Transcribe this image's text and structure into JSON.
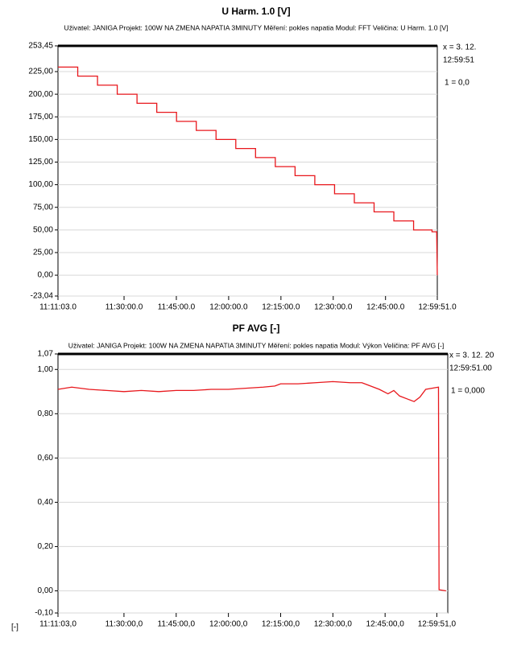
{
  "chart_data": [
    {
      "type": "line",
      "title": "U Harm. 1.0 [V]",
      "subtitle": "Uživatel: JANIGA   Projekt: 100W NA ZMENA NAPATIA 3MINUTY   Měření: pokles napatia   Modul: FFT   Veličina: U Harm. 1.0 [V]",
      "color": "#e8171c",
      "x": [
        40263,
        40603,
        40603,
        40943,
        40943,
        41283,
        41283,
        41623,
        41623,
        41963,
        41963,
        42303,
        42303,
        42643,
        42643,
        42983,
        42983,
        43323,
        43323,
        43663,
        43663,
        44003,
        44003,
        44343,
        44343,
        44683,
        44683,
        45023,
        45023,
        45363,
        45363,
        45703,
        45703,
        46043,
        46043,
        46383,
        46383,
        46700,
        46700,
        46780,
        46791
      ],
      "values": [
        230,
        230,
        220,
        220,
        210,
        210,
        200,
        200,
        190,
        190,
        180,
        180,
        170,
        170,
        160,
        160,
        150,
        150,
        140,
        140,
        130,
        130,
        120,
        120,
        110,
        110,
        100,
        100,
        90,
        90,
        80,
        80,
        70,
        70,
        60,
        60,
        50,
        50,
        48,
        48,
        0
      ],
      "xlim": [
        40263,
        46791
      ],
      "xticks": [
        {
          "value": 40263,
          "label": "11:11:03.0"
        },
        {
          "value": 41400,
          "label": "11:30:00.0"
        },
        {
          "value": 42300,
          "label": "11:45:00.0"
        },
        {
          "value": 43200,
          "label": "12:00:00.0"
        },
        {
          "value": 44100,
          "label": "12:15:00.0"
        },
        {
          "value": 45000,
          "label": "12:30:00.0"
        },
        {
          "value": 45900,
          "label": "12:45:00.0"
        },
        {
          "value": 46791,
          "label": "12:59:51.0"
        }
      ],
      "ylim": [
        -23.04,
        253.45
      ],
      "yticks": [
        {
          "value": 253.45,
          "label": "253,45"
        },
        {
          "value": 225,
          "label": "225,00"
        },
        {
          "value": 200,
          "label": "200,00"
        },
        {
          "value": 175,
          "label": "175,00"
        },
        {
          "value": 150,
          "label": "150,00"
        },
        {
          "value": 125,
          "label": "125,00"
        },
        {
          "value": 100,
          "label": "100,00"
        },
        {
          "value": 75,
          "label": "75,00"
        },
        {
          "value": 50,
          "label": "50,00"
        },
        {
          "value": 25,
          "label": "25,00"
        },
        {
          "value": 0,
          "label": "0,00"
        },
        {
          "value": -23.04,
          "label": "-23,04"
        }
      ],
      "grid": true,
      "cursor_labels": [
        "x = 3. 12.",
        "12:59:51"
      ],
      "cursor_value": "1 = 0,0"
    },
    {
      "type": "line",
      "title": "PF AVG [-]",
      "subtitle": "Uživatel: JANIGA   Projekt: 100W NA ZMENA NAPATIA 3MINUTY   Měření: pokles napatia   Modul: Výkon   Veličina: PF AVG [-]",
      "color": "#e8171c",
      "x": [
        40263,
        40500,
        40800,
        41100,
        41400,
        41700,
        42000,
        42300,
        42600,
        42900,
        43200,
        43500,
        43800,
        44000,
        44100,
        44400,
        44700,
        45000,
        45300,
        45500,
        45600,
        45800,
        45950,
        46050,
        46150,
        46300,
        46400,
        46500,
        46600,
        46820,
        46830,
        46950
      ],
      "values": [
        0.91,
        0.92,
        0.91,
        0.905,
        0.9,
        0.905,
        0.9,
        0.905,
        0.905,
        0.91,
        0.91,
        0.915,
        0.92,
        0.925,
        0.935,
        0.935,
        0.94,
        0.945,
        0.94,
        0.94,
        0.93,
        0.91,
        0.89,
        0.905,
        0.88,
        0.865,
        0.855,
        0.875,
        0.91,
        0.92,
        0.005,
        0.0
      ],
      "xlim": [
        40263,
        46980
      ],
      "xticks": [
        {
          "value": 40263,
          "label": "11:11:03,0"
        },
        {
          "value": 41400,
          "label": "11:30:00,0"
        },
        {
          "value": 42300,
          "label": "11:45:00,0"
        },
        {
          "value": 43200,
          "label": "12:00:00,0"
        },
        {
          "value": 44100,
          "label": "12:15:00,0"
        },
        {
          "value": 45000,
          "label": "12:30:00,0"
        },
        {
          "value": 45900,
          "label": "12:45:00,0"
        },
        {
          "value": 46791,
          "label": "12:59:51,0"
        }
      ],
      "ylim": [
        -0.1,
        1.07
      ],
      "yticks": [
        {
          "value": 1.07,
          "label": "1,07"
        },
        {
          "value": 1.0,
          "label": "1,00"
        },
        {
          "value": 0.8,
          "label": "0,80"
        },
        {
          "value": 0.6,
          "label": "0,60"
        },
        {
          "value": 0.4,
          "label": "0,40"
        },
        {
          "value": 0.2,
          "label": "0,20"
        },
        {
          "value": 0.0,
          "label": "0,00"
        },
        {
          "value": -0.1,
          "label": "-0,10"
        }
      ],
      "grid": true,
      "cursor_labels": [
        "x = 3. 12. 20",
        "12:59:51.00"
      ],
      "cursor_value": "1 = 0,000",
      "y_unit": "[-]"
    }
  ]
}
